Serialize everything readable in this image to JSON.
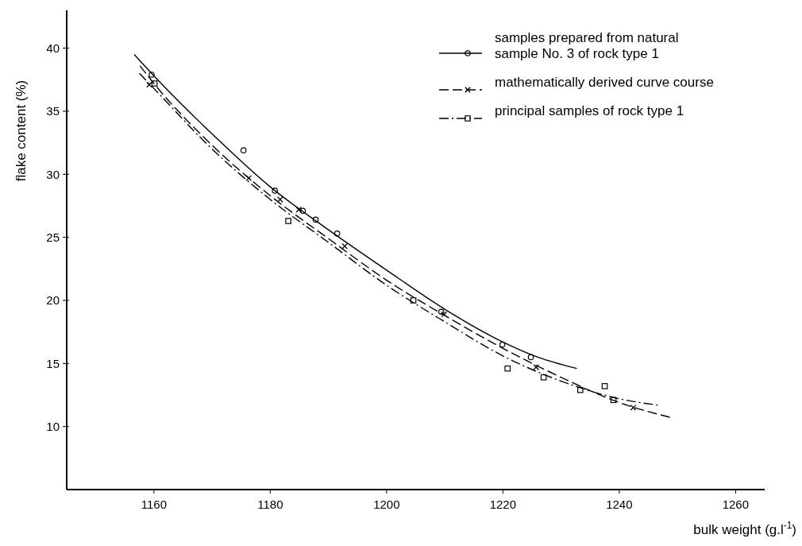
{
  "chart_data": {
    "type": "line",
    "xlabel": "bulk weight (g.l$^{-1}$)",
    "ylabel": "flake content (%)",
    "xlim": [
      1145,
      1265
    ],
    "xticks": [
      1160,
      1180,
      1200,
      1220,
      1240,
      1260
    ],
    "ylim": [
      5,
      43
    ],
    "yticks": [
      10,
      15,
      20,
      25,
      30,
      35,
      40
    ],
    "grid": false,
    "legend": "top right",
    "series": [
      {
        "name": "samples prepared from natural sample No. 3 of rock type 1",
        "color": "#000000",
        "line_style": "solid",
        "x": [
          1156.6,
          1160,
          1170,
          1180,
          1190,
          1200,
          1210,
          1220,
          1226,
          1232.7
        ],
        "values": [
          39.5,
          37.8,
          33.2,
          29.0,
          25.6,
          22.4,
          19.3,
          16.7,
          15.5,
          14.6
        ]
      },
      {
        "name": "mathematically derived curve course",
        "color": "#000000",
        "line_style": "dashed",
        "x": [
          1157.6,
          1160,
          1170,
          1180,
          1190,
          1200,
          1210,
          1220,
          1230,
          1240,
          1249
        ],
        "values": [
          38.6,
          37.2,
          32.3,
          28.3,
          24.9,
          21.6,
          18.8,
          16.2,
          13.9,
          11.9,
          10.7
        ]
      },
      {
        "name": "principal samples of rock type 1",
        "color": "#000000",
        "line_style": "dashdot",
        "x": [
          1157.5,
          1160,
          1170,
          1180,
          1190,
          1200,
          1210,
          1220,
          1230,
          1240,
          1246.6
        ],
        "values": [
          38.0,
          36.8,
          32.0,
          28.0,
          24.6,
          21.2,
          18.3,
          15.6,
          13.6,
          12.2,
          11.7
        ]
      },
      {
        "type": "scatter",
        "color": "#000000",
        "marker": "circle",
        "x": [
          1159.6,
          1175.4,
          1180.8,
          1185.6,
          1187.8,
          1191.5,
          1209.4,
          1219.9,
          1224.8
        ],
        "values": [
          37.9,
          31.9,
          28.7,
          27.1,
          26.4,
          25.3,
          19.1,
          16.5,
          15.5
        ]
      },
      {
        "type": "scatter",
        "color": "#000000",
        "marker": "cross",
        "x": [
          1159.2,
          1176.3,
          1181.7,
          1184.9,
          1192.8,
          1209.9,
          1225.7,
          1242.4
        ],
        "values": [
          37.1,
          29.7,
          28.0,
          27.2,
          24.3,
          18.9,
          14.7,
          11.5
        ]
      },
      {
        "type": "scatter",
        "color": "#000000",
        "marker": "square",
        "x": [
          1160.1,
          1183.1,
          1204.6,
          1220.8,
          1227,
          1233.3,
          1237.5,
          1239
        ],
        "values": [
          37.2,
          26.3,
          20.0,
          14.6,
          13.9,
          12.9,
          13.2,
          12.1
        ]
      }
    ]
  }
}
